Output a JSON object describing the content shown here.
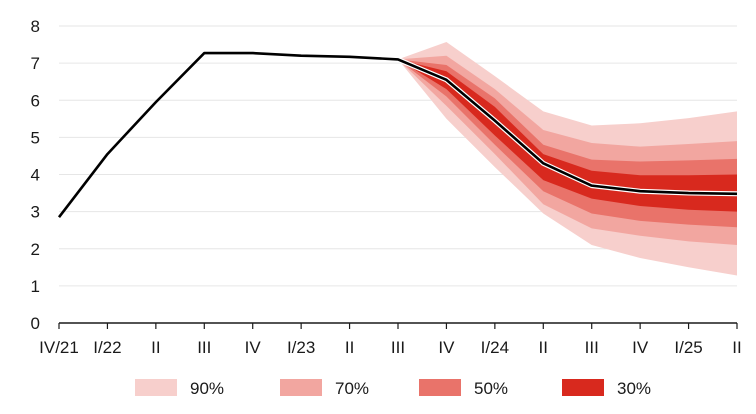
{
  "chart_data": {
    "type": "line",
    "title": "",
    "xlabel": "",
    "ylabel": "",
    "x": [
      "IV/21",
      "I/22",
      "II",
      "III",
      "IV",
      "I/23",
      "II",
      "III",
      "IV",
      "I/24",
      "II",
      "III",
      "IV",
      "I/25",
      "II"
    ],
    "ylim": [
      0,
      8
    ],
    "yticks": [
      0,
      1,
      2,
      3,
      4,
      5,
      6,
      7,
      8
    ],
    "grid": "horizontal",
    "legend_position": "bottom",
    "series": [
      {
        "type": "line",
        "color": "#000000",
        "values": [
          2.85,
          4.55,
          5.95,
          7.27,
          7.27,
          7.2,
          7.17,
          7.1,
          6.55,
          5.45,
          4.3,
          3.7,
          3.55,
          3.5,
          3.48
        ]
      }
    ],
    "fan_start_index": 7,
    "fan_bands": [
      {
        "name": "90%",
        "color": "#f7cfcc",
        "lower": [
          7.1,
          5.5,
          4.2,
          2.95,
          2.1,
          1.75,
          1.5,
          1.28
        ],
        "upper": [
          7.1,
          7.57,
          6.65,
          5.7,
          5.32,
          5.38,
          5.52,
          5.7
        ]
      },
      {
        "name": "70%",
        "color": "#f2a6a0",
        "lower": [
          7.1,
          5.85,
          4.55,
          3.2,
          2.55,
          2.35,
          2.2,
          2.1
        ],
        "upper": [
          7.1,
          7.2,
          6.3,
          5.2,
          4.85,
          4.75,
          4.82,
          4.9
        ]
      },
      {
        "name": "50%",
        "color": "#e9736a",
        "lower": [
          7.1,
          6.1,
          4.8,
          3.55,
          2.95,
          2.75,
          2.65,
          2.58
        ],
        "upper": [
          7.1,
          6.95,
          6.05,
          4.8,
          4.4,
          4.35,
          4.38,
          4.42
        ]
      },
      {
        "name": "30%",
        "color": "#d8291e",
        "lower": [
          7.1,
          6.3,
          5.05,
          3.85,
          3.35,
          3.15,
          3.05,
          3.0
        ],
        "upper": [
          7.1,
          6.78,
          5.82,
          4.55,
          4.1,
          3.98,
          3.98,
          4.0
        ]
      }
    ],
    "legend": [
      "90%",
      "70%",
      "50%",
      "30%"
    ]
  }
}
